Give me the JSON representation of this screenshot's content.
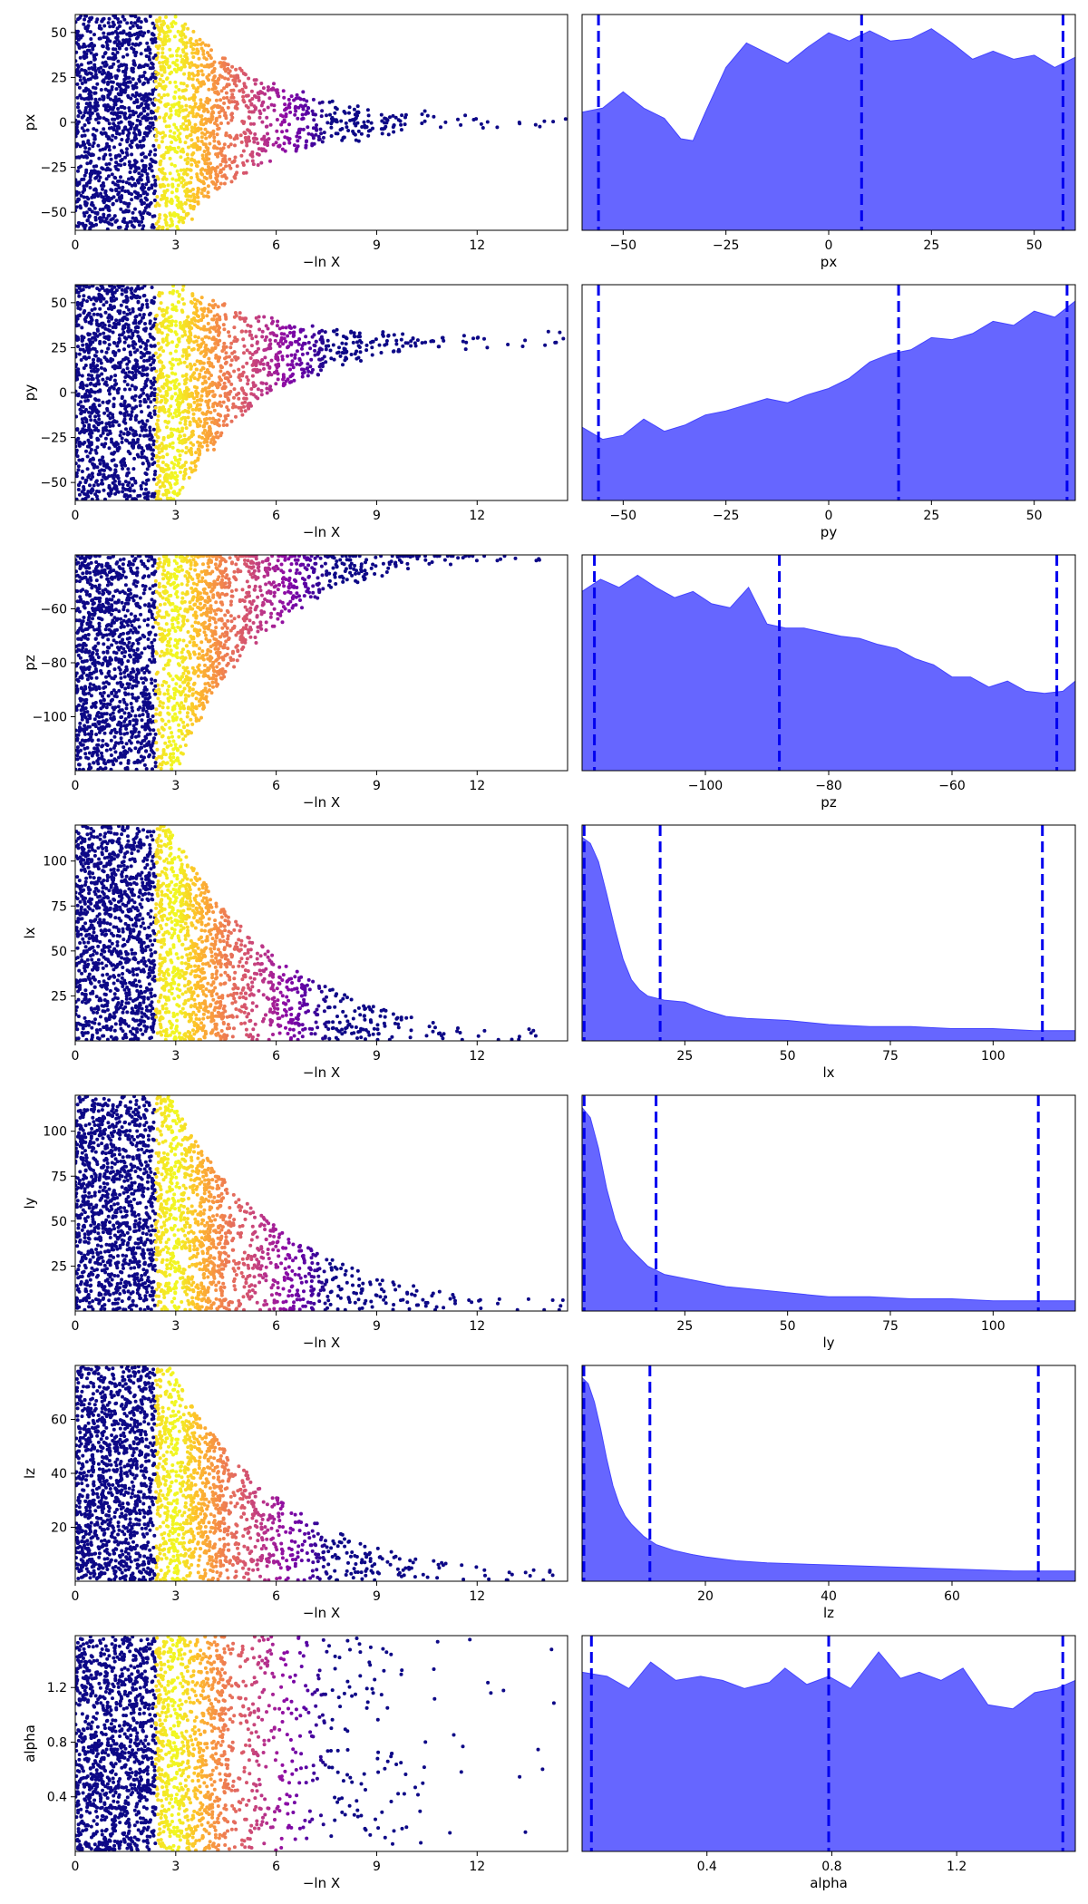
{
  "chart_data": [
    {
      "type": "scatter",
      "panel": "trace",
      "parameter": "px",
      "xlabel": "−ln X",
      "ylabel": "px",
      "xlim": [
        0,
        14.7
      ],
      "ylim": [
        -60,
        60
      ],
      "xticks": [
        0,
        3,
        6,
        9,
        12
      ],
      "yticks": [
        -50,
        -25,
        0,
        25,
        50
      ],
      "cmap": "plasma",
      "shape": "funnel",
      "center": 0,
      "trail_end": 14.7,
      "grid": false
    },
    {
      "type": "area",
      "panel": "marginal",
      "parameter": "px",
      "xlabel": "px",
      "xlim": [
        -60,
        60
      ],
      "xticks": [
        -50,
        -25,
        0,
        25,
        50
      ],
      "quantiles": [
        -56,
        8,
        57
      ],
      "x": [
        -60,
        -55,
        -50,
        -45,
        -40,
        -36,
        -33,
        -30,
        -25,
        -20,
        -15,
        -10,
        -5,
        0,
        5,
        10,
        15,
        20,
        25,
        30,
        35,
        40,
        45,
        50,
        55,
        60
      ],
      "y": [
        0.58,
        0.6,
        0.68,
        0.6,
        0.55,
        0.45,
        0.44,
        0.58,
        0.8,
        0.92,
        0.87,
        0.82,
        0.9,
        0.97,
        0.93,
        0.98,
        0.93,
        0.94,
        0.99,
        0.92,
        0.84,
        0.88,
        0.84,
        0.86,
        0.8,
        0.85
      ],
      "fill_color": "#6666ff",
      "quantile_color": "#0000ee",
      "grid": false
    },
    {
      "type": "scatter",
      "panel": "trace",
      "parameter": "py",
      "xlabel": "−ln X",
      "ylabel": "py",
      "xlim": [
        0,
        14.7
      ],
      "ylim": [
        -60,
        60
      ],
      "xticks": [
        0,
        3,
        6,
        9,
        12
      ],
      "yticks": [
        -50,
        -25,
        0,
        25,
        50
      ],
      "cmap": "plasma",
      "shape": "funnel",
      "center": 30,
      "trail_end": 14.7,
      "grid": false
    },
    {
      "type": "area",
      "panel": "marginal",
      "parameter": "py",
      "xlabel": "py",
      "xlim": [
        -60,
        60
      ],
      "xticks": [
        -50,
        -25,
        0,
        25,
        50
      ],
      "quantiles": [
        -56,
        17,
        58
      ],
      "x": [
        -60,
        -55,
        -50,
        -45,
        -40,
        -35,
        -30,
        -25,
        -20,
        -15,
        -10,
        -5,
        0,
        5,
        10,
        15,
        20,
        25,
        30,
        35,
        40,
        45,
        50,
        55,
        60
      ],
      "y": [
        0.36,
        0.3,
        0.32,
        0.4,
        0.34,
        0.37,
        0.42,
        0.44,
        0.47,
        0.5,
        0.48,
        0.52,
        0.55,
        0.6,
        0.68,
        0.72,
        0.74,
        0.8,
        0.79,
        0.82,
        0.88,
        0.86,
        0.93,
        0.9,
        0.98
      ],
      "fill_color": "#6666ff",
      "quantile_color": "#0000ee",
      "grid": false
    },
    {
      "type": "scatter",
      "panel": "trace",
      "parameter": "pz",
      "xlabel": "−ln X",
      "ylabel": "pz",
      "xlim": [
        0,
        14.7
      ],
      "ylim": [
        -120,
        -40
      ],
      "xticks": [
        0,
        3,
        6,
        9,
        12
      ],
      "yticks": [
        -100,
        -80,
        -60
      ],
      "cmap": "plasma",
      "shape": "funnel",
      "center": -38,
      "trail_end": 14,
      "grid": false
    },
    {
      "type": "area",
      "panel": "marginal",
      "parameter": "pz",
      "xlabel": "pz",
      "xlim": [
        -120,
        -40
      ],
      "xticks": [
        -100,
        -80,
        -60
      ],
      "quantiles": [
        -118,
        -88,
        -43
      ],
      "x": [
        -120,
        -117,
        -114,
        -111,
        -108,
        -105,
        -102,
        -99,
        -96,
        -93,
        -90,
        -87,
        -84,
        -81,
        -78,
        -75,
        -72,
        -69,
        -66,
        -63,
        -60,
        -57,
        -54,
        -51,
        -48,
        -45,
        -42,
        -40
      ],
      "y": [
        0.88,
        0.94,
        0.9,
        0.96,
        0.9,
        0.85,
        0.88,
        0.82,
        0.8,
        0.9,
        0.72,
        0.7,
        0.7,
        0.68,
        0.66,
        0.65,
        0.62,
        0.6,
        0.55,
        0.52,
        0.46,
        0.46,
        0.41,
        0.44,
        0.39,
        0.38,
        0.39,
        0.44
      ],
      "fill_color": "#6666ff",
      "quantile_color": "#0000ee",
      "grid": false
    },
    {
      "type": "scatter",
      "panel": "trace",
      "parameter": "lx",
      "xlabel": "−ln X",
      "ylabel": "lx",
      "xlim": [
        0,
        14.7
      ],
      "ylim": [
        0,
        120
      ],
      "xticks": [
        0,
        3,
        6,
        9,
        12
      ],
      "yticks": [
        25,
        50,
        75,
        100
      ],
      "cmap": "plasma",
      "shape": "decay",
      "trail_end": 14,
      "grid": false
    },
    {
      "type": "area",
      "panel": "marginal",
      "parameter": "lx",
      "xlabel": "lx",
      "xlim": [
        0,
        120
      ],
      "xticks": [
        25,
        50,
        75,
        100
      ],
      "quantiles": [
        0.5,
        19,
        112
      ],
      "x": [
        0,
        2,
        4,
        6,
        8,
        10,
        12,
        14,
        16,
        18,
        20,
        25,
        30,
        35,
        40,
        50,
        60,
        70,
        80,
        90,
        100,
        110,
        120
      ],
      "y": [
        1.0,
        0.97,
        0.88,
        0.72,
        0.55,
        0.4,
        0.3,
        0.25,
        0.22,
        0.21,
        0.2,
        0.19,
        0.15,
        0.12,
        0.11,
        0.1,
        0.08,
        0.07,
        0.07,
        0.06,
        0.06,
        0.05,
        0.05
      ],
      "fill_color": "#6666ff",
      "quantile_color": "#0000ee",
      "grid": false
    },
    {
      "type": "scatter",
      "panel": "trace",
      "parameter": "ly",
      "xlabel": "−ln X",
      "ylabel": "ly",
      "xlim": [
        0,
        14.7
      ],
      "ylim": [
        0,
        120
      ],
      "xticks": [
        0,
        3,
        6,
        9,
        12
      ],
      "yticks": [
        25,
        50,
        75,
        100
      ],
      "cmap": "plasma",
      "shape": "decay",
      "trail_end": 14.7,
      "grid": false
    },
    {
      "type": "area",
      "panel": "marginal",
      "parameter": "ly",
      "xlabel": "ly",
      "xlim": [
        0,
        120
      ],
      "xticks": [
        25,
        50,
        75,
        100
      ],
      "quantiles": [
        0.5,
        18,
        111
      ],
      "x": [
        0,
        2,
        4,
        6,
        8,
        10,
        12,
        14,
        16,
        18,
        20,
        25,
        30,
        35,
        40,
        50,
        60,
        70,
        80,
        90,
        100,
        110,
        120
      ],
      "y": [
        1.0,
        0.95,
        0.8,
        0.6,
        0.45,
        0.35,
        0.3,
        0.26,
        0.22,
        0.2,
        0.18,
        0.16,
        0.14,
        0.12,
        0.11,
        0.09,
        0.07,
        0.07,
        0.06,
        0.06,
        0.05,
        0.05,
        0.05
      ],
      "fill_color": "#6666ff",
      "quantile_color": "#0000ee",
      "grid": false
    },
    {
      "type": "scatter",
      "panel": "trace",
      "parameter": "lz",
      "xlabel": "−ln X",
      "ylabel": "lz",
      "xlim": [
        0,
        14.7
      ],
      "ylim": [
        0,
        80
      ],
      "xticks": [
        0,
        3,
        6,
        9,
        12
      ],
      "yticks": [
        20,
        40,
        60
      ],
      "cmap": "plasma",
      "shape": "decay",
      "trail_end": 14.7,
      "grid": false
    },
    {
      "type": "area",
      "panel": "marginal",
      "parameter": "lz",
      "xlabel": "lz",
      "xlim": [
        0,
        80
      ],
      "xticks": [
        20,
        40,
        60
      ],
      "quantiles": [
        0.3,
        11,
        74
      ],
      "x": [
        0,
        1,
        2,
        3,
        4,
        5,
        6,
        7,
        8,
        9,
        10,
        12,
        15,
        18,
        20,
        25,
        30,
        40,
        50,
        60,
        70,
        80
      ],
      "y": [
        1.0,
        0.97,
        0.88,
        0.75,
        0.6,
        0.47,
        0.38,
        0.32,
        0.28,
        0.25,
        0.22,
        0.18,
        0.15,
        0.13,
        0.12,
        0.1,
        0.09,
        0.08,
        0.07,
        0.06,
        0.05,
        0.05
      ],
      "fill_color": "#6666ff",
      "quantile_color": "#0000ee",
      "grid": false
    },
    {
      "type": "scatter",
      "panel": "trace",
      "parameter": "alpha",
      "xlabel": "−ln X",
      "ylabel": "alpha",
      "xlim": [
        0,
        14.7
      ],
      "ylim": [
        0,
        1.58
      ],
      "xticks": [
        0,
        3,
        6,
        9,
        12
      ],
      "yticks": [
        0.4,
        0.8,
        1.2
      ],
      "ytick_labels": [
        "0.4",
        "0.8",
        "1.2"
      ],
      "cmap": "plasma",
      "shape": "uniform",
      "trail_end": 14.7,
      "grid": false
    },
    {
      "type": "area",
      "panel": "marginal",
      "parameter": "alpha",
      "xlabel": "alpha",
      "xlim": [
        0,
        1.58
      ],
      "xticks": [
        0.4,
        0.8,
        1.2
      ],
      "xtick_labels": [
        "0.4",
        "0.8",
        "1.2"
      ],
      "quantiles": [
        0.03,
        0.79,
        1.54
      ],
      "x": [
        0,
        0.08,
        0.15,
        0.22,
        0.3,
        0.38,
        0.45,
        0.52,
        0.6,
        0.65,
        0.72,
        0.79,
        0.86,
        0.95,
        1.02,
        1.08,
        1.15,
        1.22,
        1.3,
        1.38,
        1.45,
        1.52,
        1.58
      ],
      "y": [
        0.88,
        0.86,
        0.8,
        0.93,
        0.84,
        0.86,
        0.84,
        0.8,
        0.83,
        0.9,
        0.82,
        0.86,
        0.8,
        0.98,
        0.85,
        0.88,
        0.84,
        0.9,
        0.72,
        0.7,
        0.78,
        0.8,
        0.84
      ],
      "fill_color": "#6666ff",
      "quantile_color": "#0000ee",
      "grid": false
    }
  ]
}
